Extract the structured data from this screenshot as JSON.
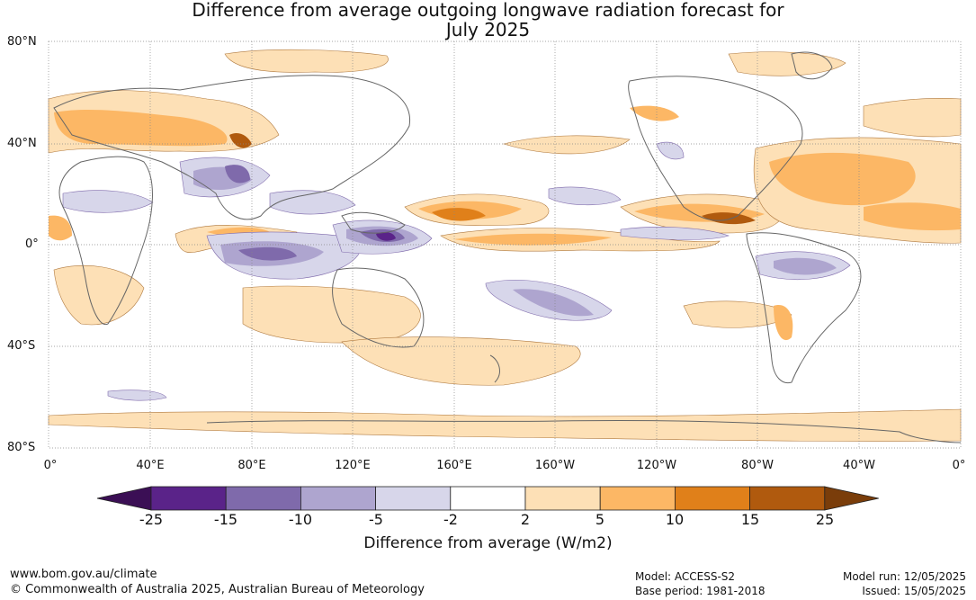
{
  "title_line1": "Difference from average outgoing longwave radiation forecast for",
  "title_line2": "July 2025",
  "y_ticks": [
    "80°N",
    "40°N",
    "0°",
    "40°S",
    "80°S"
  ],
  "x_ticks": [
    "0°",
    "40°E",
    "80°E",
    "120°E",
    "160°E",
    "160°W",
    "120°W",
    "80°W",
    "40°W",
    "0°"
  ],
  "colorbar": {
    "title": "Difference from average (W/m2)",
    "labels": [
      "-25",
      "-15",
      "-10",
      "-5",
      "-2",
      "2",
      "5",
      "10",
      "15",
      "25"
    ],
    "colors": [
      "#3b0f55",
      "#5a2389",
      "#7f6aab",
      "#aea5cf",
      "#d7d6ea",
      "#ffffff",
      "#fde0b6",
      "#fcb765",
      "#e0801a",
      "#b05a0e",
      "#7a3d0a"
    ]
  },
  "footer": {
    "website": "www.bom.gov.au/climate",
    "copyright": "© Commonwealth of Australia 2025, Australian Bureau of Meteorology",
    "model": "Model: ACCESS-S2",
    "base_period": "Base period: 1981-2018",
    "model_run": "Model run: 12/05/2025",
    "issued": "Issued: 15/05/2025"
  }
}
